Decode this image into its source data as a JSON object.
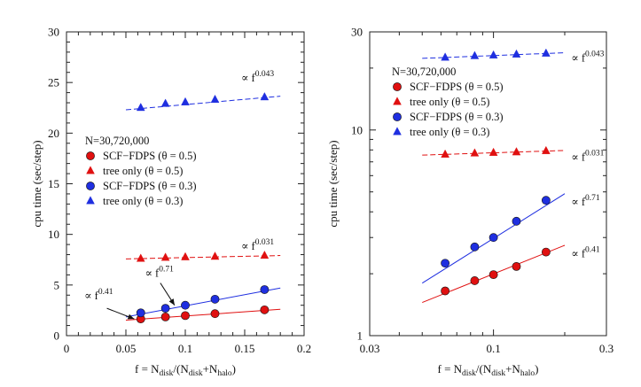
{
  "chart_data": [
    {
      "type": "scatter",
      "scale": "linear",
      "xlim": [
        0,
        0.2
      ],
      "ylim": [
        0,
        30
      ],
      "xticks": [
        "0",
        "0.05",
        "0.1",
        "0.15",
        "0.2"
      ],
      "yticks": [
        "0",
        "5",
        "10",
        "15",
        "20",
        "25",
        "30"
      ],
      "xlabel": {
        "pre": "f = N",
        "s1": "disk",
        "mid": "/(N",
        "s2": "disk",
        "plus": "+N",
        "s3": "halo",
        "post": ")"
      },
      "ylabel": "cpu time (sec/step)",
      "legend_title": "N=30,720,000",
      "legend_entries": [
        "SCF−FDPS (θ = 0.5)",
        "tree only (θ = 0.5)",
        "SCF−FDPS (θ = 0.3)",
        "tree only (θ = 0.3)"
      ],
      "series": [
        {
          "marker": "circle",
          "color": "#e01010",
          "x": [
            0.0625,
            0.0833,
            0.1,
            0.125,
            0.1667
          ],
          "y": [
            1.65,
            1.85,
            1.98,
            2.17,
            2.55
          ]
        },
        {
          "marker": "triangle",
          "color": "#e01010",
          "x": [
            0.0625,
            0.0833,
            0.1,
            0.125,
            0.1667
          ],
          "y": [
            7.6,
            7.7,
            7.75,
            7.8,
            7.9
          ]
        },
        {
          "marker": "circle",
          "color": "#1f2fe0",
          "x": [
            0.0625,
            0.0833,
            0.1,
            0.125,
            0.1667
          ],
          "y": [
            2.25,
            2.7,
            3.0,
            3.6,
            4.55
          ]
        },
        {
          "marker": "triangle",
          "color": "#1f2fe0",
          "x": [
            0.0625,
            0.0833,
            0.1,
            0.125,
            0.1667
          ],
          "y": [
            22.5,
            22.9,
            23.05,
            23.3,
            23.55
          ]
        }
      ],
      "fits": [
        {
          "color": "#e01010",
          "dashed": false,
          "x": [
            0.05,
            0.18
          ],
          "y": [
            1.53,
            2.6
          ]
        },
        {
          "color": "#1f2fe0",
          "dashed": false,
          "x": [
            0.05,
            0.18
          ],
          "y": [
            1.85,
            4.7
          ]
        },
        {
          "color": "#e01010",
          "dashed": true,
          "x": [
            0.05,
            0.18
          ],
          "y": [
            7.58,
            7.91
          ]
        },
        {
          "color": "#1f2fe0",
          "dashed": true,
          "x": [
            0.05,
            0.18
          ],
          "y": [
            22.3,
            23.65
          ]
        }
      ],
      "annotations": [
        {
          "text": "∝ f",
          "exp": "0.043",
          "x": 0.147,
          "y": 25.1
        },
        {
          "text": "∝ f",
          "exp": "0.031",
          "x": 0.147,
          "y": 8.5
        },
        {
          "text": "∝ f",
          "exp": "0.71",
          "x": 0.066,
          "y": 5.8
        },
        {
          "text": "∝ f",
          "exp": "0.41",
          "x": 0.015,
          "y": 3.6
        }
      ],
      "arrows": [
        {
          "from": [
            0.079,
            5.2
          ],
          "to": [
            0.091,
            3.0
          ]
        },
        {
          "from": [
            0.034,
            2.7
          ],
          "to": [
            0.057,
            1.65
          ]
        }
      ]
    },
    {
      "type": "scatter",
      "scale": "log",
      "xlim": [
        0.03,
        0.3
      ],
      "ylim": [
        1,
        30
      ],
      "xticks": [
        {
          "v": 0.03,
          "t": "0.03"
        },
        {
          "v": 0.1,
          "t": "0.1"
        },
        {
          "v": 0.3,
          "t": "0.3"
        }
      ],
      "yticks": [
        {
          "v": 1,
          "t": "1"
        },
        {
          "v": 10,
          "t": "10"
        },
        {
          "v": 30,
          "t": "30"
        }
      ],
      "xlabel": {
        "pre": "f = N",
        "s1": "disk",
        "mid": "/(N",
        "s2": "disk",
        "plus": "+N",
        "s3": "halo",
        "post": ")"
      },
      "ylabel": "cpu time (sec/step)",
      "legend_title": "N=30,720,000",
      "legend_entries": [
        "SCF−FDPS (θ = 0.5)",
        "tree only (θ = 0.5)",
        "SCF−FDPS (θ = 0.3)",
        "tree only (θ = 0.3)"
      ],
      "series": [
        {
          "marker": "circle",
          "color": "#e01010",
          "x": [
            0.0625,
            0.0833,
            0.1,
            0.125,
            0.1667
          ],
          "y": [
            1.65,
            1.85,
            1.98,
            2.17,
            2.55
          ]
        },
        {
          "marker": "triangle",
          "color": "#e01010",
          "x": [
            0.0625,
            0.0833,
            0.1,
            0.125,
            0.1667
          ],
          "y": [
            7.6,
            7.7,
            7.75,
            7.8,
            7.9
          ]
        },
        {
          "marker": "circle",
          "color": "#1f2fe0",
          "x": [
            0.0625,
            0.0833,
            0.1,
            0.125,
            0.1667
          ],
          "y": [
            2.25,
            2.7,
            3.0,
            3.6,
            4.55
          ]
        },
        {
          "marker": "triangle",
          "color": "#1f2fe0",
          "x": [
            0.0625,
            0.0833,
            0.1,
            0.125,
            0.1667
          ],
          "y": [
            22.5,
            22.9,
            23.05,
            23.3,
            23.55
          ]
        }
      ],
      "fits": [
        {
          "color": "#e01010",
          "dashed": false,
          "x": [
            0.05,
            0.2
          ],
          "y": [
            1.45,
            2.75
          ]
        },
        {
          "color": "#1f2fe0",
          "dashed": false,
          "x": [
            0.05,
            0.2
          ],
          "y": [
            1.8,
            4.9
          ]
        },
        {
          "color": "#e01010",
          "dashed": true,
          "x": [
            0.05,
            0.2
          ],
          "y": [
            7.55,
            7.95
          ]
        },
        {
          "color": "#1f2fe0",
          "dashed": true,
          "x": [
            0.05,
            0.2
          ],
          "y": [
            22.3,
            23.75
          ]
        }
      ],
      "annotations": [
        {
          "text": "∝ f",
          "exp": "0.043",
          "x": 0.213,
          "y": 21.5
        },
        {
          "text": "∝ f",
          "exp": "0.031",
          "x": 0.213,
          "y": 7.1
        },
        {
          "text": "∝ f",
          "exp": "0.71",
          "x": 0.213,
          "y": 4.3
        },
        {
          "text": "∝ f",
          "exp": "0.41",
          "x": 0.213,
          "y": 2.4
        }
      ],
      "arrows": []
    }
  ]
}
